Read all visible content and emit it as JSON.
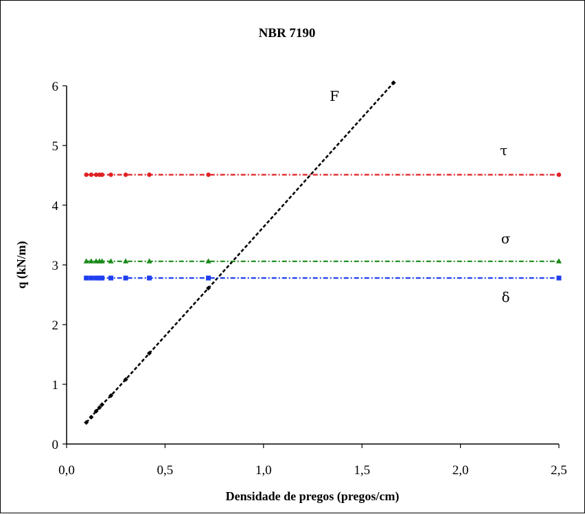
{
  "chart_data": {
    "type": "line",
    "title": "NBR 7190",
    "xlabel": "Densidade de pregos (pregos/cm)",
    "ylabel": "q (kN/m)",
    "xlim": [
      0.0,
      2.5
    ],
    "ylim": [
      0,
      6
    ],
    "x_ticks": [
      "0,0",
      "0,5",
      "1,0",
      "1,5",
      "2,0",
      "2,5"
    ],
    "y_ticks": [
      "0",
      "1",
      "2",
      "3",
      "4",
      "5",
      "6"
    ],
    "grid": false,
    "legend": "none",
    "series": [
      {
        "name": "F",
        "color": "#000000",
        "marker": "diamond",
        "style": "dashed",
        "x": [
          0.1,
          0.125,
          0.15,
          0.167,
          0.18,
          0.225,
          0.3,
          0.42,
          0.72,
          1.66
        ],
        "y": [
          0.36,
          0.45,
          0.55,
          0.61,
          0.66,
          0.81,
          1.08,
          1.52,
          2.61,
          6.05
        ]
      },
      {
        "name": "τ",
        "color": "#e02020",
        "marker": "circle",
        "style": "dash-dot",
        "x": [
          0.1,
          0.125,
          0.15,
          0.167,
          0.18,
          0.225,
          0.3,
          0.42,
          0.72,
          2.5
        ],
        "y": [
          4.51,
          4.51,
          4.51,
          4.51,
          4.51,
          4.51,
          4.51,
          4.51,
          4.51,
          4.51
        ]
      },
      {
        "name": "σ",
        "color": "#1a8a1a",
        "marker": "triangle",
        "style": "dash-dot",
        "x": [
          0.1,
          0.125,
          0.15,
          0.167,
          0.18,
          0.225,
          0.3,
          0.42,
          0.72,
          2.5
        ],
        "y": [
          3.06,
          3.06,
          3.06,
          3.06,
          3.06,
          3.06,
          3.06,
          3.06,
          3.06,
          3.06
        ]
      },
      {
        "name": "δ",
        "color": "#1f3ff0",
        "marker": "square",
        "style": "dash-dot",
        "x": [
          0.1,
          0.125,
          0.15,
          0.167,
          0.18,
          0.225,
          0.3,
          0.42,
          0.72,
          2.5
        ],
        "y": [
          2.78,
          2.78,
          2.78,
          2.78,
          2.78,
          2.78,
          2.78,
          2.78,
          2.78,
          2.78
        ]
      }
    ],
    "series_labels": [
      {
        "text": "F",
        "x": 1.36,
        "y": 5.75
      },
      {
        "text": "τ",
        "x": 2.22,
        "y": 4.84
      },
      {
        "text": "σ",
        "x": 2.23,
        "y": 3.36
      },
      {
        "text": "δ",
        "x": 2.23,
        "y": 2.38
      }
    ]
  }
}
